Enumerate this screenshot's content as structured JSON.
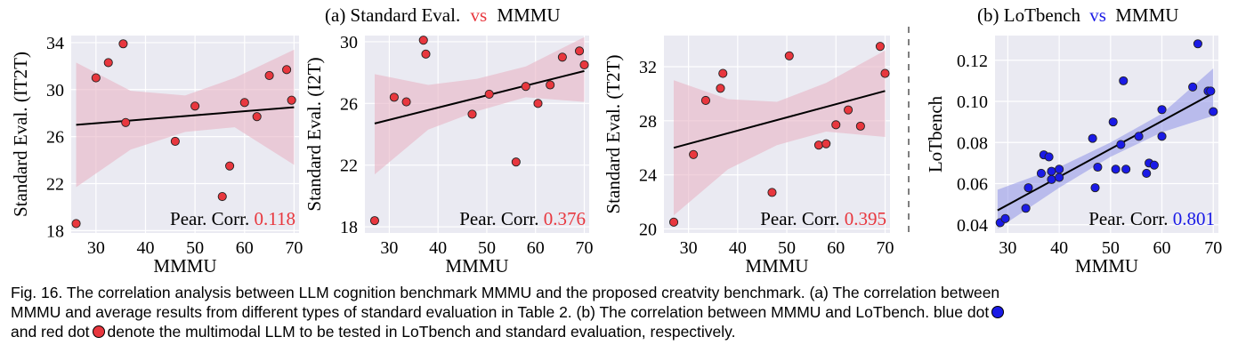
{
  "figure": {
    "title_a_prefix": "(a) Standard Eval.",
    "title_a_vs": "vs",
    "title_a_suffix": "MMMU",
    "title_b_prefix": "(b) LoTbench",
    "title_b_vs": "vs",
    "title_b_suffix": "MMMU",
    "pear_label": "Pear. Corr.",
    "colors": {
      "red": "#e8373e",
      "blue": "#1a1ae6",
      "red_band": "#e8b4c4",
      "blue_band": "#8f94e8",
      "panel_bg": "#eaeaf2",
      "vs_a": "#e8373e",
      "vs_b": "#1a1ae6"
    }
  },
  "caption": {
    "line1": "Fig. 16. The correlation analysis between LLM cognition benchmark MMMU and the proposed creatvity benchmark. (a) The correlation between",
    "line2": "MMMU and average results from different types of standard evaluation in Table 2. (b) The correlation between MMMU and LoTbench. blue dot",
    "line3_a": "and red dot",
    "line3_b": "denote the multimodal LLM to be tested in LoTbench and standard evaluation, respectively."
  },
  "chart_data": [
    {
      "type": "scatter",
      "xlabel": "MMMU",
      "ylabel": "Standard Eval. (IT2T)",
      "xlim": [
        25,
        71
      ],
      "ylim": [
        17.8,
        34.6
      ],
      "xticks": [
        30,
        40,
        50,
        60,
        70
      ],
      "yticks": [
        18,
        22,
        26,
        30,
        34
      ],
      "corr": "0.118",
      "color": "red",
      "fit": [
        [
          26,
          27.0
        ],
        [
          70,
          28.5
        ]
      ],
      "band": [
        [
          26,
          32.3,
          21.7
        ],
        [
          37,
          29.9,
          24.9
        ],
        [
          48,
          29.5,
          26.4
        ],
        [
          58,
          31.0,
          26.8
        ],
        [
          70,
          33.4,
          23.6
        ]
      ],
      "points": [
        [
          26,
          18.6
        ],
        [
          30,
          31.0
        ],
        [
          32.5,
          32.3
        ],
        [
          35.5,
          33.9
        ],
        [
          36,
          27.2
        ],
        [
          46,
          25.6
        ],
        [
          50,
          28.6
        ],
        [
          55.5,
          20.9
        ],
        [
          57,
          23.5
        ],
        [
          60,
          28.9
        ],
        [
          62.5,
          27.7
        ],
        [
          65,
          31.2
        ],
        [
          68.5,
          31.7
        ],
        [
          69.5,
          29.1
        ]
      ]
    },
    {
      "type": "scatter",
      "xlabel": "MMMU",
      "ylabel": "Standard Eval. (I2T)",
      "xlim": [
        25,
        71
      ],
      "ylim": [
        17.6,
        30.4
      ],
      "xticks": [
        30,
        40,
        50,
        60,
        70
      ],
      "yticks": [
        18,
        22,
        26,
        30
      ],
      "corr": "0.376",
      "color": "red",
      "fit": [
        [
          27,
          24.7
        ],
        [
          70,
          28.1
        ]
      ],
      "band": [
        [
          27,
          27.9,
          21.4
        ],
        [
          38,
          27.2,
          24.3
        ],
        [
          48,
          27.6,
          25.5
        ],
        [
          58,
          28.4,
          26.4
        ],
        [
          70,
          30.3,
          26.1
        ]
      ],
      "points": [
        [
          27,
          18.4
        ],
        [
          31,
          26.4
        ],
        [
          33.5,
          26.1
        ],
        [
          37,
          30.1
        ],
        [
          37.5,
          29.2
        ],
        [
          47,
          25.3
        ],
        [
          50.5,
          26.6
        ],
        [
          56,
          22.2
        ],
        [
          58,
          27.1
        ],
        [
          60.5,
          26.0
        ],
        [
          63,
          27.2
        ],
        [
          65.5,
          29.0
        ],
        [
          69,
          29.4
        ],
        [
          70,
          28.5
        ]
      ]
    },
    {
      "type": "scatter",
      "xlabel": "MMMU",
      "ylabel": "Standard Eval. (T2T)",
      "xlim": [
        25,
        71
      ],
      "ylim": [
        19.7,
        34.3
      ],
      "xticks": [
        30,
        40,
        50,
        60,
        70
      ],
      "yticks": [
        20,
        24,
        28,
        32
      ],
      "corr": "0.395",
      "color": "red",
      "fit": [
        [
          27,
          26.0
        ],
        [
          70,
          30.2
        ]
      ],
      "band": [
        [
          27,
          31.0,
          21.0
        ],
        [
          38,
          29.6,
          24.4
        ],
        [
          48,
          29.4,
          26.2
        ],
        [
          58,
          30.8,
          27.2
        ],
        [
          70,
          33.2,
          26.8
        ]
      ],
      "points": [
        [
          27,
          20.5
        ],
        [
          31,
          25.5
        ],
        [
          33.5,
          29.5
        ],
        [
          36.5,
          30.4
        ],
        [
          37,
          31.5
        ],
        [
          47,
          22.7
        ],
        [
          50.5,
          32.8
        ],
        [
          56.5,
          26.2
        ],
        [
          58,
          26.3
        ],
        [
          60,
          27.7
        ],
        [
          62.5,
          28.8
        ],
        [
          65,
          27.6
        ],
        [
          69,
          33.5
        ],
        [
          70,
          31.5
        ]
      ]
    },
    {
      "type": "scatter",
      "xlabel": "MMMU",
      "ylabel": "LoTbench",
      "xlim": [
        27.5,
        71
      ],
      "ylim": [
        0.036,
        0.132
      ],
      "xticks": [
        30,
        40,
        50,
        60,
        70
      ],
      "yticks": [
        0.04,
        0.06,
        0.08,
        0.1,
        0.12
      ],
      "ytick_labels": [
        "0.04",
        "0.06",
        "0.08",
        "0.10",
        "0.12"
      ],
      "corr": "0.801",
      "color": "blue",
      "fit": [
        [
          28,
          0.047
        ],
        [
          70,
          0.104
        ]
      ],
      "band": [
        [
          28,
          0.057,
          0.038
        ],
        [
          40,
          0.068,
          0.058
        ],
        [
          50,
          0.08,
          0.073
        ],
        [
          60,
          0.094,
          0.085
        ],
        [
          70,
          0.116,
          0.093
        ]
      ],
      "points": [
        [
          28.5,
          0.041
        ],
        [
          29.5,
          0.043
        ],
        [
          33.5,
          0.048
        ],
        [
          34,
          0.058
        ],
        [
          36.5,
          0.065
        ],
        [
          37,
          0.074
        ],
        [
          38,
          0.073
        ],
        [
          38.5,
          0.066
        ],
        [
          38.5,
          0.062
        ],
        [
          40,
          0.067
        ],
        [
          40,
          0.063
        ],
        [
          46.5,
          0.082
        ],
        [
          47,
          0.058
        ],
        [
          47.5,
          0.068
        ],
        [
          50.5,
          0.09
        ],
        [
          51,
          0.067
        ],
        [
          52,
          0.079
        ],
        [
          52.5,
          0.11
        ],
        [
          53,
          0.067
        ],
        [
          55.5,
          0.083
        ],
        [
          57,
          0.065
        ],
        [
          57.5,
          0.07
        ],
        [
          58.5,
          0.069
        ],
        [
          60,
          0.083
        ],
        [
          60,
          0.096
        ],
        [
          66,
          0.107
        ],
        [
          67,
          0.128
        ],
        [
          69,
          0.105
        ],
        [
          69.5,
          0.105
        ],
        [
          70,
          0.095
        ]
      ]
    }
  ]
}
